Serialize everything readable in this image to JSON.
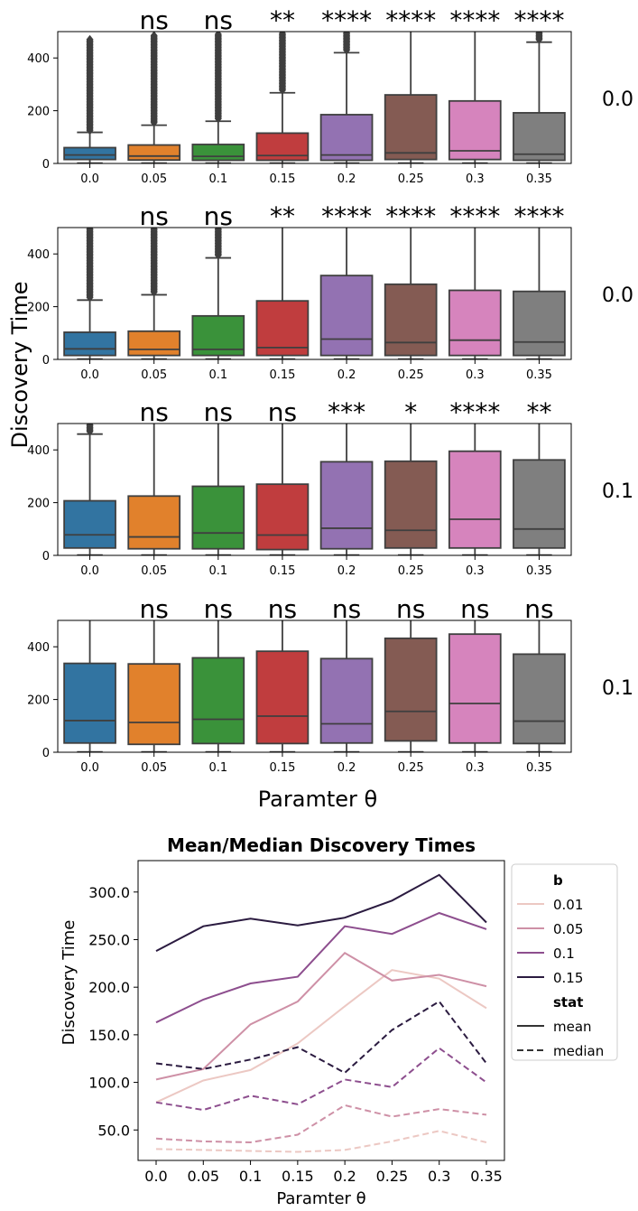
{
  "figure": {
    "box_ylabel": "Discovery Time",
    "box_xlabel": "Paramter θ",
    "line_title": "Mean/Median Discovery Times",
    "line_ylabel": "Discovery Time",
    "line_xlabel": "Paramter θ"
  },
  "colors": {
    "box_palette": [
      "#3274a1",
      "#e1812c",
      "#3a923a",
      "#c03d3e",
      "#9372b2",
      "#845b53",
      "#d684bd",
      "#7f7f7f"
    ],
    "line_palette": [
      "#ecc8c3",
      "#ce90a6",
      "#8d4e8e",
      "#2b1b40"
    ]
  },
  "chart_data": [
    {
      "type": "box",
      "panel_label": "0.0",
      "categories": [
        "0.0",
        "0.05",
        "0.1",
        "0.15",
        "0.2",
        "0.25",
        "0.3",
        "0.35"
      ],
      "ylim": [
        0,
        500
      ],
      "yticks": [
        "0",
        "200",
        "400"
      ],
      "significance": [
        "ns",
        "ns",
        "**",
        "****",
        "****",
        "****",
        "****"
      ],
      "boxes": [
        {
          "q1": 15,
          "median": 32,
          "q3": 60,
          "wlo": 1,
          "whi": 118,
          "out_lo": 125,
          "out_hi": 470
        },
        {
          "q1": 13,
          "median": 28,
          "q3": 70,
          "wlo": 1,
          "whi": 145,
          "out_lo": 155,
          "out_hi": 485
        },
        {
          "q1": 12,
          "median": 27,
          "q3": 72,
          "wlo": 1,
          "whi": 160,
          "out_lo": 170,
          "out_hi": 490
        },
        {
          "q1": 12,
          "median": 30,
          "q3": 115,
          "wlo": 1,
          "whi": 268,
          "out_lo": 278,
          "out_hi": 495
        },
        {
          "q1": 12,
          "median": 32,
          "q3": 185,
          "wlo": 1,
          "whi": 420,
          "out_lo": 430,
          "out_hi": 495
        },
        {
          "q1": 15,
          "median": 40,
          "q3": 260,
          "wlo": 1,
          "whi": 520
        },
        {
          "q1": 15,
          "median": 48,
          "q3": 237,
          "wlo": 1,
          "whi": 520
        },
        {
          "q1": 12,
          "median": 35,
          "q3": 192,
          "wlo": 1,
          "whi": 460,
          "out_lo": 470,
          "out_hi": 495
        }
      ]
    },
    {
      "type": "box",
      "panel_label": "0.0",
      "categories": [
        "0.0",
        "0.05",
        "0.1",
        "0.15",
        "0.2",
        "0.25",
        "0.3",
        "0.35"
      ],
      "ylim": [
        0,
        500
      ],
      "yticks": [
        "0",
        "200",
        "400"
      ],
      "significance": [
        "ns",
        "ns",
        "**",
        "****",
        "****",
        "****",
        "****"
      ],
      "boxes": [
        {
          "q1": 15,
          "median": 40,
          "q3": 103,
          "wlo": 1,
          "whi": 225,
          "out_lo": 235,
          "out_hi": 495
        },
        {
          "q1": 15,
          "median": 38,
          "q3": 107,
          "wlo": 1,
          "whi": 245,
          "out_lo": 255,
          "out_hi": 495
        },
        {
          "q1": 15,
          "median": 38,
          "q3": 165,
          "wlo": 1,
          "whi": 385,
          "out_lo": 395,
          "out_hi": 495
        },
        {
          "q1": 15,
          "median": 45,
          "q3": 222,
          "wlo": 1,
          "whi": 520
        },
        {
          "q1": 15,
          "median": 77,
          "q3": 318,
          "wlo": 1,
          "whi": 520
        },
        {
          "q1": 15,
          "median": 64,
          "q3": 285,
          "wlo": 1,
          "whi": 520
        },
        {
          "q1": 15,
          "median": 73,
          "q3": 262,
          "wlo": 1,
          "whi": 520
        },
        {
          "q1": 15,
          "median": 66,
          "q3": 258,
          "wlo": 1,
          "whi": 520
        }
      ]
    },
    {
      "type": "box",
      "panel_label": "0.1",
      "categories": [
        "0.0",
        "0.05",
        "0.1",
        "0.15",
        "0.2",
        "0.25",
        "0.3",
        "0.35"
      ],
      "ylim": [
        0,
        500
      ],
      "yticks": [
        "0",
        "200",
        "400"
      ],
      "significance": [
        "ns",
        "ns",
        "ns",
        "***",
        "*",
        "****",
        "**"
      ],
      "boxes": [
        {
          "q1": 28,
          "median": 78,
          "q3": 207,
          "wlo": 1,
          "whi": 460,
          "out_lo": 470,
          "out_hi": 495
        },
        {
          "q1": 25,
          "median": 70,
          "q3": 225,
          "wlo": 1,
          "whi": 520
        },
        {
          "q1": 25,
          "median": 85,
          "q3": 262,
          "wlo": 1,
          "whi": 520
        },
        {
          "q1": 22,
          "median": 77,
          "q3": 270,
          "wlo": 1,
          "whi": 520
        },
        {
          "q1": 25,
          "median": 103,
          "q3": 355,
          "wlo": 1,
          "whi": 520
        },
        {
          "q1": 28,
          "median": 95,
          "q3": 357,
          "wlo": 1,
          "whi": 520
        },
        {
          "q1": 28,
          "median": 137,
          "q3": 395,
          "wlo": 1,
          "whi": 520
        },
        {
          "q1": 28,
          "median": 100,
          "q3": 362,
          "wlo": 1,
          "whi": 520
        }
      ]
    },
    {
      "type": "box",
      "panel_label": "0.1",
      "categories": [
        "0.0",
        "0.05",
        "0.1",
        "0.15",
        "0.2",
        "0.25",
        "0.3",
        "0.35"
      ],
      "ylim": [
        0,
        500
      ],
      "yticks": [
        "0",
        "200",
        "400"
      ],
      "significance": [
        "ns",
        "ns",
        "ns",
        "ns",
        "ns",
        "ns",
        "ns"
      ],
      "boxes": [
        {
          "q1": 35,
          "median": 120,
          "q3": 337,
          "wlo": 1,
          "whi": 520
        },
        {
          "q1": 30,
          "median": 113,
          "q3": 335,
          "wlo": 1,
          "whi": 520
        },
        {
          "q1": 33,
          "median": 125,
          "q3": 358,
          "wlo": 1,
          "whi": 520
        },
        {
          "q1": 33,
          "median": 137,
          "q3": 383,
          "wlo": 1,
          "whi": 520
        },
        {
          "q1": 35,
          "median": 108,
          "q3": 355,
          "wlo": 1,
          "whi": 520
        },
        {
          "q1": 43,
          "median": 155,
          "q3": 432,
          "wlo": 1,
          "whi": 520
        },
        {
          "q1": 35,
          "median": 185,
          "q3": 448,
          "wlo": 1,
          "whi": 520
        },
        {
          "q1": 33,
          "median": 118,
          "q3": 372,
          "wlo": 1,
          "whi": 520
        }
      ]
    },
    {
      "type": "line",
      "title": "Mean/Median Discovery Times",
      "xlabel": "Paramter θ",
      "ylabel": "Discovery Time",
      "x": [
        "0.0",
        "0.05",
        "0.1",
        "0.15",
        "0.2",
        "0.25",
        "0.3",
        "0.35"
      ],
      "ylim": [
        18,
        333
      ],
      "yticks": [
        "50.0",
        "100.0",
        "150.0",
        "200.0",
        "250.0",
        "300.0"
      ],
      "legend": {
        "placement": "right, outside",
        "b_title": "b",
        "b_labels": [
          "0.01",
          "0.05",
          "0.1",
          "0.15"
        ],
        "stat_title": "stat",
        "stat_labels": [
          "mean",
          "median"
        ]
      },
      "series": [
        {
          "b": "0.01",
          "stat": "mean",
          "values": [
            79,
            102,
            113,
            141,
            180,
            218,
            209,
            178
          ]
        },
        {
          "b": "0.05",
          "stat": "mean",
          "values": [
            103,
            114,
            161,
            185,
            236,
            207,
            213,
            201
          ]
        },
        {
          "b": "0.1",
          "stat": "mean",
          "values": [
            163,
            187,
            204,
            211,
            264,
            256,
            278,
            261
          ]
        },
        {
          "b": "0.15",
          "stat": "mean",
          "values": [
            238,
            264,
            272,
            265,
            273,
            291,
            318,
            268
          ]
        },
        {
          "b": "0.01",
          "stat": "median",
          "values": [
            30,
            29,
            28,
            27,
            29,
            38,
            49,
            37
          ]
        },
        {
          "b": "0.05",
          "stat": "median",
          "values": [
            41,
            38,
            37,
            45,
            76,
            64,
            72,
            66
          ]
        },
        {
          "b": "0.1",
          "stat": "median",
          "values": [
            79,
            71,
            86,
            77,
            103,
            95,
            136,
            100
          ]
        },
        {
          "b": "0.15",
          "stat": "median",
          "values": [
            120,
            114,
            124,
            137,
            110,
            155,
            185,
            120
          ]
        }
      ]
    }
  ]
}
